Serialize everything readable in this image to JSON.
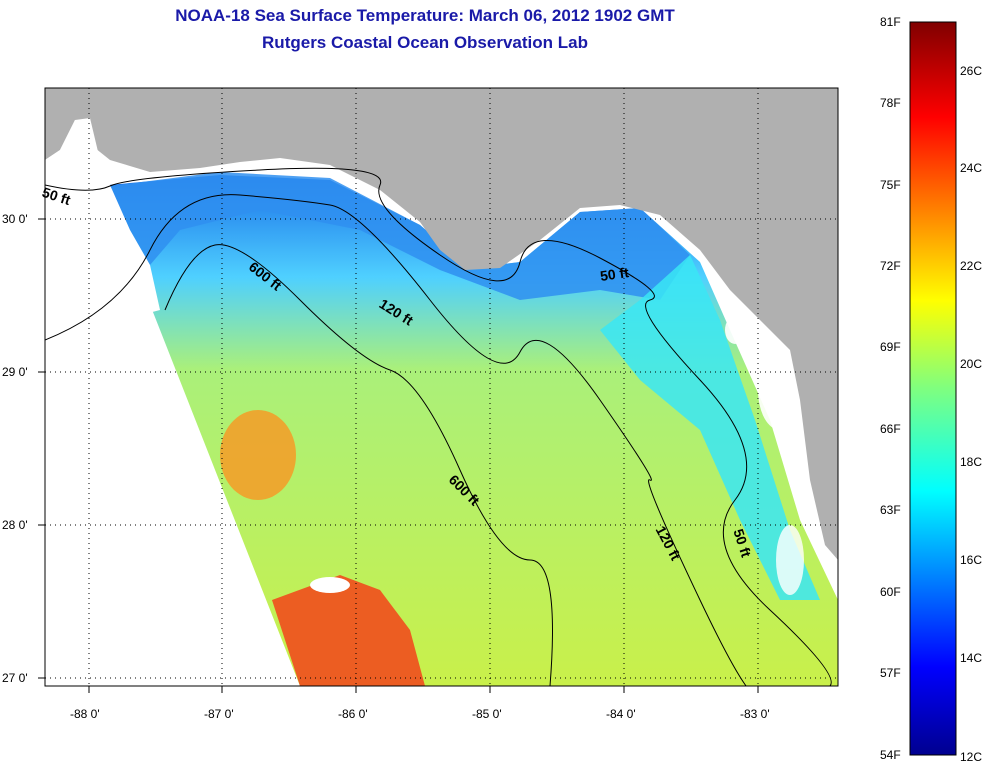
{
  "header": {
    "title": "NOAA-18 Sea Surface Temperature:  March 06, 2012 1902 GMT",
    "subtitle": "Rutgers Coastal Ocean Observation Lab"
  },
  "map": {
    "lon_labels": [
      "-88 0'",
      "-87 0'",
      "-86 0'",
      "-85 0'",
      "-84 0'",
      "-83 0'"
    ],
    "lat_labels": [
      "30 0'",
      "29 0'",
      "28 0'",
      "27 0'"
    ],
    "contour_labels": [
      "50 ft",
      "600 ft",
      "120 ft",
      "50 ft",
      "600 ft",
      "120 ft",
      "50 ft"
    ],
    "colors": {
      "land": "#b0b0b0",
      "sea_missing": "#ffffff",
      "contour": "#000000"
    }
  },
  "colorbar": {
    "fahrenheit_labels": [
      "81F",
      "78F",
      "75F",
      "72F",
      "69F",
      "66F",
      "63F",
      "60F",
      "57F",
      "54F"
    ],
    "celsius_labels": [
      "26C",
      "24C",
      "22C",
      "20C",
      "18C",
      "16C",
      "14C",
      "12C"
    ]
  }
}
